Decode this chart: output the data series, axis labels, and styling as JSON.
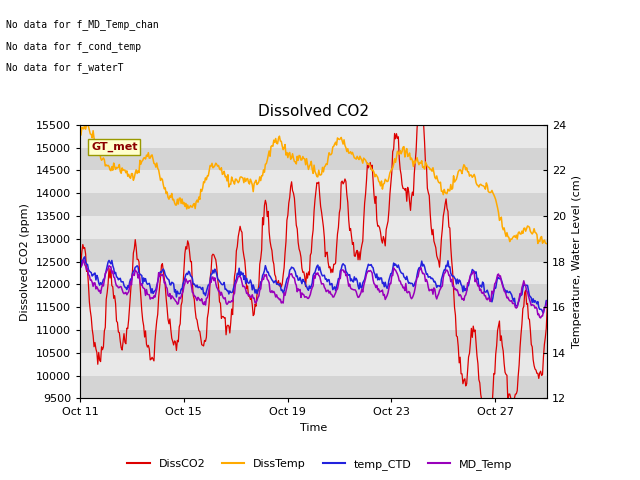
{
  "title": "Dissolved CO2",
  "xlabel": "Time",
  "ylabel_left": "Dissolved CO2 (ppm)",
  "ylabel_right": "Temperature, Water Level (cm)",
  "ylim_left": [
    9500,
    15500
  ],
  "ylim_right": [
    12,
    24
  ],
  "yticks_left": [
    9500,
    10000,
    10500,
    11000,
    11500,
    12000,
    12500,
    13000,
    13500,
    14000,
    14500,
    15000,
    15500
  ],
  "yticks_right": [
    12,
    14,
    16,
    18,
    20,
    22,
    24
  ],
  "xtick_labels": [
    "Oct 11",
    "Oct 15",
    "Oct 19",
    "Oct 23",
    "Oct 27"
  ],
  "colors": {
    "DissCO2": "#dd0000",
    "DissTemp": "#ffaa00",
    "temp_CTD": "#2222dd",
    "MD_Temp": "#9900bb"
  },
  "annotations": [
    "No data for f_MD_Temp_chan",
    "No data for f_cond_temp",
    "No data for f_waterT"
  ],
  "gt_met_label": "GT_met",
  "band_colors": [
    "#e8e8e8",
    "#d8d8d8"
  ],
  "figsize": [
    6.4,
    4.8
  ],
  "dpi": 100
}
